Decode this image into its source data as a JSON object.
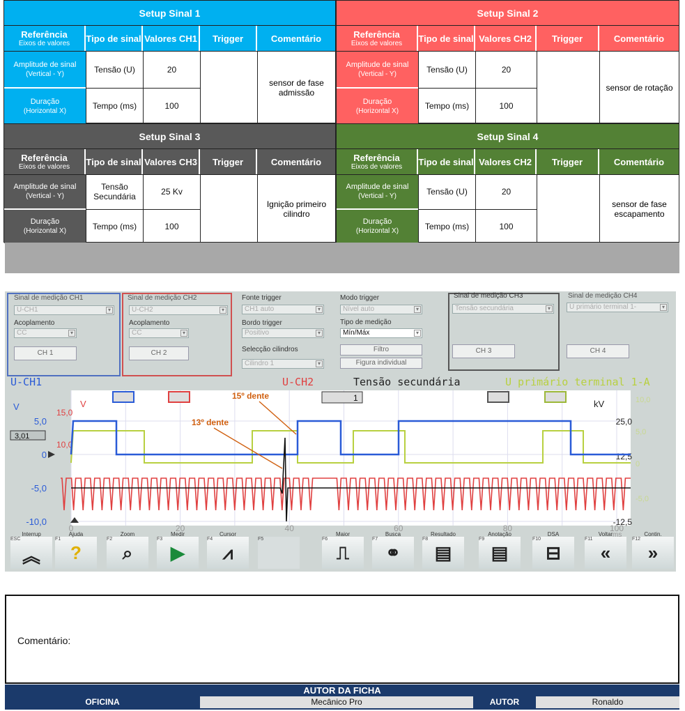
{
  "setups": [
    {
      "title": "Setup Sinal 1",
      "color": "#00b0f0",
      "h_ref": "Referência",
      "h_ref_sub": "Eixos de valores",
      "h_tipo": "Tipo de sinal",
      "h_val": "Valores CH1",
      "h_trig": "Trigger",
      "h_com": "Comentário",
      "r1_ref": "Amplitude de sinal",
      "r1_sub": "(Vertical - Y)",
      "r1_tipo": "Tensão (U)",
      "r1_val": "20",
      "r2_ref": "Duração",
      "r2_sub": "(Horizontal X)",
      "r2_tipo": "Tempo (ms)",
      "r2_val": "100",
      "comment": "sensor de fase admissão"
    },
    {
      "title": "Setup Sinal 2",
      "color": "#ff6161",
      "h_ref": "Referência",
      "h_ref_sub": "Eixos de valores",
      "h_tipo": "Tipo de sinal",
      "h_val": "Valores CH2",
      "h_trig": "Trigger",
      "h_com": "Comentário",
      "r1_ref": "Amplitude de sinal",
      "r1_sub": "(Vertical - Y)",
      "r1_tipo": "Tensão (U)",
      "r1_val": "20",
      "r2_ref": "Duração",
      "r2_sub": "(Horizontal X)",
      "r2_tipo": "Tempo (ms)",
      "r2_val": "100",
      "comment": "sensor de rotação"
    },
    {
      "title": "Setup Sinal 3",
      "color": "#595959",
      "h_ref": "Referência",
      "h_ref_sub": "Eixos de valores",
      "h_tipo": "Tipo de sinal",
      "h_val": "Valores CH3",
      "h_trig": "Trigger",
      "h_com": "Comentário",
      "r1_ref": "Amplitude de sinal",
      "r1_sub": "(Vertical - Y)",
      "r1_tipo": "Tensão Secundária",
      "r1_val": "25 Kv",
      "r2_ref": "Duração",
      "r2_sub": "(Horizontal X)",
      "r2_tipo": "Tempo (ms)",
      "r2_val": "100",
      "comment": "Ignição primeiro cilindro"
    },
    {
      "title": "Setup Sinal 4",
      "color": "#538135",
      "h_ref": "Referência",
      "h_ref_sub": "Eixos de valores",
      "h_tipo": "Tipo de sinal",
      "h_val": "Valores CH2",
      "h_trig": "Trigger",
      "h_com": "Comentário",
      "r1_ref": "Amplitude de sinal",
      "r1_sub": "(Vertical - Y)",
      "r1_tipo": "Tensão (U)",
      "r1_val": "20",
      "r2_ref": "Duração",
      "r2_sub": "(Horizontal X)",
      "r2_tipo": "Tempo (ms)",
      "r2_val": "100",
      "comment": "sensor de fase escapamento"
    }
  ],
  "scope": {
    "ch1_label": "Sinal de medição CH1",
    "ch1_value": "U-CH1",
    "ch1_coupling_label": "Acoplamento",
    "ch1_coupling": "CC",
    "ch1_btn": "CH 1",
    "ch2_label": "Sinal de medição CH2",
    "ch2_value": "U-CH2",
    "ch2_coupling_label": "Acoplamento",
    "ch2_coupling": "CC",
    "ch2_btn": "CH 2",
    "trig_src_label": "Fonte trigger",
    "trig_src": "CH1 auto",
    "trig_edge_label": "Bordo trigger",
    "trig_edge": "Positivo",
    "cyl_label": "Selecção cilindros",
    "cyl": "Cilindro 1",
    "trig_mode_label": "Modo trigger",
    "trig_mode": "Nível auto",
    "meas_type_label": "Tipo de medição",
    "meas_type": "Mín/Máx",
    "filter_btn": "Filtro",
    "figure_btn": "Figura individual",
    "ch3_label": "Sinal de medição CH3",
    "ch3_value": "Tensão secundária",
    "ch3_btn": "CH 3",
    "ch4_label": "Sinal de medição CH4",
    "ch4_value": "U primário terminal 1-",
    "ch4_btn": "CH 4",
    "trace_ch1": "U-CH1",
    "trace_ch2": "U-CH2",
    "trace_ch3": "Tensão secundária",
    "trace_ch4": "U primário terminal 1-A",
    "unit_v": "V",
    "unit_kv": "kV",
    "unit_ms": "ms",
    "unit_v2": "V",
    "ch2_scale": "15,0",
    "ch2_scale2": "10,0",
    "trigger_level": "3,01",
    "trigger_box": "1",
    "y_left": [
      "5,0",
      "0",
      "-5,0",
      "-10,0"
    ],
    "y_right_kv": [
      "25,0",
      "12,5",
      "-12,5"
    ],
    "y_right_g": [
      "10,0",
      "5,0",
      "0",
      "-5,0"
    ],
    "x_ticks": [
      "0",
      "20",
      "40",
      "60",
      "80",
      "100"
    ],
    "ann1": "15º dente",
    "ann2": "13º dente",
    "fkeys": [
      {
        "top": "Interrup",
        "fk": "ESC",
        "icon": "up-chevron-icon"
      },
      {
        "top": "Ajuda",
        "fk": "F1",
        "icon": "help-icon"
      },
      {
        "top": "Zoom",
        "fk": "F2",
        "icon": "zoom-icon"
      },
      {
        "top": "Medir",
        "fk": "F3",
        "icon": "play-icon"
      },
      {
        "top": "Cursor",
        "fk": "F4",
        "icon": "cursor-icon"
      },
      {
        "top": "",
        "fk": "F5",
        "icon": ""
      },
      {
        "top": "Maior",
        "fk": "F6",
        "icon": "pulse-icon"
      },
      {
        "top": "Busca",
        "fk": "F7",
        "icon": "binoculars-icon"
      },
      {
        "top": "Resultado",
        "fk": "F8",
        "icon": "result-icon"
      },
      {
        "top": "Anotação",
        "fk": "F9",
        "icon": "note-icon"
      },
      {
        "top": "DSA",
        "fk": "F10",
        "icon": "dsa-icon"
      },
      {
        "top": "Voltar",
        "fk": "F11",
        "icon": "back-icon"
      },
      {
        "top": "Contin.",
        "fk": "F12",
        "icon": "forward-icon"
      }
    ]
  },
  "comment_label": "Comentário:",
  "footer": {
    "title": "AUTOR DA FICHA",
    "oficina_label": "OFICINA",
    "oficina_value": "Mecânico Pro",
    "autor_label": "AUTOR",
    "autor_value": "Ronaldo"
  }
}
